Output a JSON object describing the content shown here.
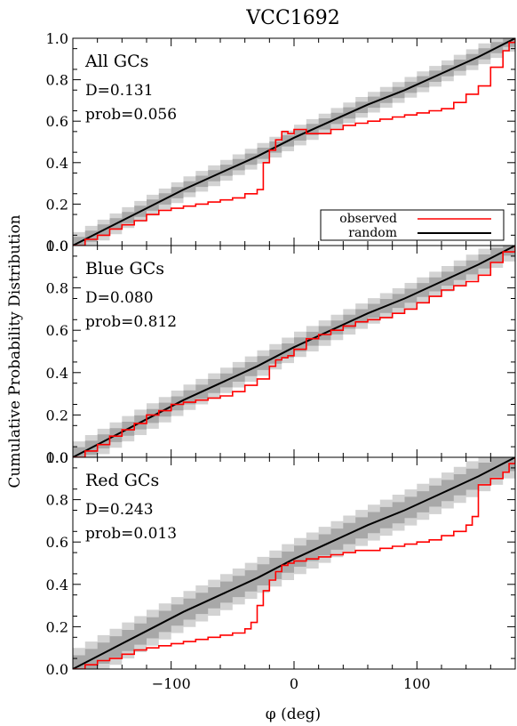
{
  "figure": {
    "title": "VCC1692",
    "ylabel": "Cumulative Probability Distribution",
    "xlabel": "φ (deg)"
  },
  "legend": {
    "observed": "observed",
    "random": "random",
    "placement": "lower-right of top panel"
  },
  "colors": {
    "observed": "#ff0000",
    "random": "#000000",
    "band_outer": "#d3d3d3",
    "band_inner": "#a8a8a8"
  },
  "chart_data": [
    {
      "type": "line",
      "panel": "All GCs",
      "label": "All GCs",
      "stats": [
        "D=0.131",
        "prob=0.056"
      ],
      "xlim": [
        -180,
        180
      ],
      "ylim": [
        0,
        1
      ],
      "xticks": [
        -100,
        0,
        100
      ],
      "yticks": [
        0.0,
        0.2,
        0.4,
        0.6,
        0.8,
        1.0
      ],
      "yticklabels": [
        "0.0",
        "0.2",
        "0.4",
        "0.6",
        "0.8",
        "1.0"
      ],
      "show_xticklabels": false,
      "band_outer_width": 0.05,
      "band_inner_width": 0.027,
      "series": [
        {
          "name": "observed",
          "style": "step",
          "x": [
            -180,
            -170,
            -160,
            -150,
            -140,
            -130,
            -120,
            -110,
            -100,
            -90,
            -80,
            -70,
            -60,
            -50,
            -40,
            -30,
            -25,
            -20,
            -15,
            -10,
            -5,
            0,
            10,
            20,
            30,
            40,
            50,
            60,
            70,
            80,
            90,
            100,
            110,
            120,
            130,
            140,
            150,
            160,
            170,
            175,
            180
          ],
          "y": [
            0.0,
            0.03,
            0.05,
            0.08,
            0.1,
            0.12,
            0.15,
            0.17,
            0.18,
            0.19,
            0.2,
            0.21,
            0.22,
            0.23,
            0.25,
            0.27,
            0.4,
            0.46,
            0.51,
            0.55,
            0.54,
            0.56,
            0.54,
            0.54,
            0.56,
            0.58,
            0.59,
            0.6,
            0.61,
            0.62,
            0.63,
            0.64,
            0.65,
            0.66,
            0.69,
            0.73,
            0.77,
            0.86,
            0.94,
            0.98,
            1.0
          ]
        },
        {
          "name": "random",
          "style": "line",
          "x": [
            -180,
            -150,
            -120,
            -90,
            -60,
            -30,
            0,
            30,
            60,
            90,
            120,
            150,
            180
          ],
          "y": [
            0.0,
            0.09,
            0.18,
            0.27,
            0.35,
            0.43,
            0.52,
            0.6,
            0.68,
            0.75,
            0.83,
            0.91,
            1.0
          ]
        }
      ]
    },
    {
      "type": "line",
      "panel": "Blue GCs",
      "label": "Blue GCs",
      "stats": [
        "D=0.080",
        "prob=0.812"
      ],
      "xlim": [
        -180,
        180
      ],
      "ylim": [
        0,
        1
      ],
      "xticks": [
        -100,
        0,
        100
      ],
      "yticks": [
        0.0,
        0.2,
        0.4,
        0.6,
        0.8,
        1.0
      ],
      "yticklabels": [
        "0.0",
        "0.2",
        "0.4",
        "0.6",
        "0.8",
        "1.0"
      ],
      "show_xticklabels": false,
      "band_outer_width": 0.06,
      "band_inner_width": 0.033,
      "series": [
        {
          "name": "observed",
          "style": "step",
          "x": [
            -180,
            -170,
            -160,
            -150,
            -140,
            -130,
            -120,
            -110,
            -100,
            -90,
            -80,
            -70,
            -60,
            -50,
            -40,
            -30,
            -20,
            -15,
            -10,
            -5,
            0,
            10,
            20,
            30,
            40,
            50,
            60,
            70,
            80,
            90,
            100,
            110,
            120,
            130,
            140,
            150,
            160,
            170,
            180
          ],
          "y": [
            0.0,
            0.03,
            0.06,
            0.1,
            0.13,
            0.16,
            0.2,
            0.22,
            0.25,
            0.26,
            0.27,
            0.28,
            0.29,
            0.31,
            0.34,
            0.37,
            0.43,
            0.46,
            0.47,
            0.48,
            0.51,
            0.56,
            0.58,
            0.6,
            0.62,
            0.64,
            0.65,
            0.66,
            0.68,
            0.7,
            0.73,
            0.76,
            0.79,
            0.81,
            0.83,
            0.86,
            0.92,
            0.97,
            1.0
          ]
        },
        {
          "name": "random",
          "style": "line",
          "x": [
            -180,
            -150,
            -120,
            -90,
            -60,
            -30,
            0,
            30,
            60,
            90,
            120,
            150,
            180
          ],
          "y": [
            0.0,
            0.09,
            0.18,
            0.27,
            0.35,
            0.43,
            0.52,
            0.6,
            0.68,
            0.75,
            0.83,
            0.91,
            1.0
          ]
        }
      ]
    },
    {
      "type": "line",
      "panel": "Red GCs",
      "label": "Red GCs",
      "stats": [
        "D=0.243",
        "prob=0.013"
      ],
      "xlim": [
        -180,
        180
      ],
      "ylim": [
        0,
        1
      ],
      "xticks": [
        -100,
        0,
        100
      ],
      "yticks": [
        0.0,
        0.2,
        0.4,
        0.6,
        0.8,
        1.0
      ],
      "yticklabels": [
        "0.0",
        "0.2",
        "0.4",
        "0.6",
        "0.8",
        "1.0"
      ],
      "xticklabels": [
        "−100",
        "0",
        "100"
      ],
      "show_xticklabels": true,
      "band_outer_width": 0.085,
      "band_inner_width": 0.05,
      "series": [
        {
          "name": "observed",
          "style": "step",
          "x": [
            -180,
            -170,
            -160,
            -150,
            -140,
            -130,
            -120,
            -110,
            -100,
            -90,
            -80,
            -70,
            -60,
            -50,
            -40,
            -35,
            -30,
            -25,
            -20,
            -15,
            -10,
            -5,
            0,
            10,
            20,
            30,
            40,
            50,
            60,
            70,
            80,
            90,
            100,
            110,
            120,
            130,
            140,
            145,
            150,
            160,
            170,
            175,
            180
          ],
          "y": [
            0.0,
            0.02,
            0.04,
            0.05,
            0.07,
            0.09,
            0.1,
            0.11,
            0.12,
            0.13,
            0.14,
            0.15,
            0.16,
            0.17,
            0.19,
            0.22,
            0.3,
            0.37,
            0.42,
            0.46,
            0.49,
            0.5,
            0.51,
            0.52,
            0.53,
            0.54,
            0.55,
            0.56,
            0.56,
            0.57,
            0.58,
            0.59,
            0.6,
            0.61,
            0.63,
            0.65,
            0.68,
            0.72,
            0.87,
            0.9,
            0.93,
            0.97,
            1.0
          ]
        },
        {
          "name": "random",
          "style": "line",
          "x": [
            -180,
            -150,
            -120,
            -90,
            -60,
            -30,
            0,
            30,
            60,
            90,
            120,
            150,
            180
          ],
          "y": [
            0.0,
            0.09,
            0.18,
            0.27,
            0.35,
            0.43,
            0.52,
            0.6,
            0.68,
            0.75,
            0.83,
            0.91,
            1.0
          ]
        }
      ]
    }
  ]
}
